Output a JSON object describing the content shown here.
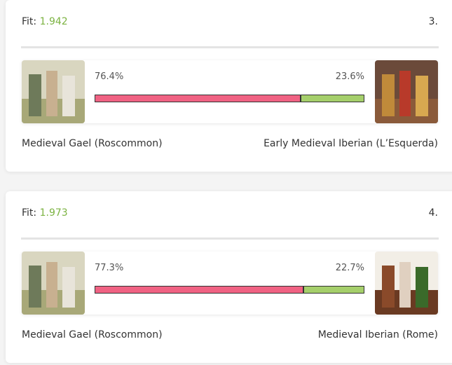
{
  "cards": [
    {
      "fit_label": "Fit:",
      "fit": "1.942",
      "rank": "3.",
      "segments": [
        {
          "value": 76.4,
          "label": "76.4%",
          "name": "Medieval Gael (Roscommon)"
        },
        {
          "value": 23.6,
          "label": "23.6%",
          "name": "Early Medieval Iberian (L’Esquerda)"
        }
      ]
    },
    {
      "fit_label": "Fit:",
      "fit": "1.973",
      "rank": "4.",
      "segments": [
        {
          "value": 77.3,
          "label": "77.3%",
          "name": "Medieval Gael (Roscommon)"
        },
        {
          "value": 22.7,
          "label": "22.7%",
          "name": "Medieval Iberian (Rome)"
        }
      ]
    }
  ]
}
